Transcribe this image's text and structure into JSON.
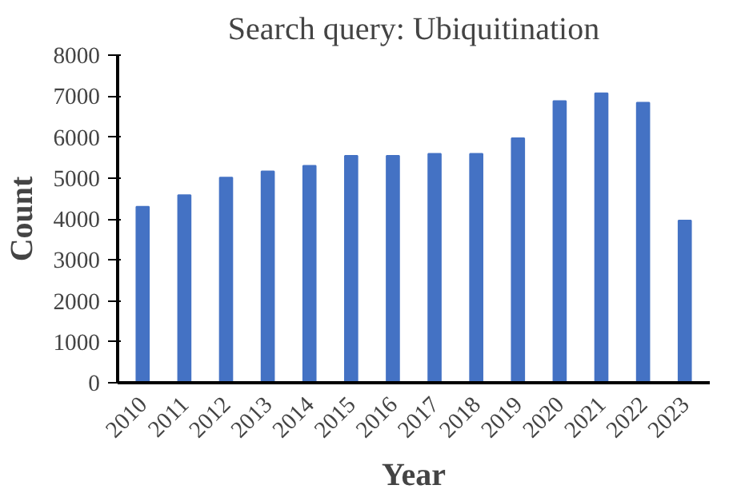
{
  "chart_data": {
    "type": "bar",
    "title": "Search query: Ubiquitination",
    "xlabel": "Year",
    "ylabel": "Count",
    "categories": [
      "2010",
      "2011",
      "2012",
      "2013",
      "2014",
      "2015",
      "2016",
      "2017",
      "2018",
      "2019",
      "2020",
      "2021",
      "2022",
      "2023"
    ],
    "values": [
      4300,
      4580,
      5010,
      5160,
      5300,
      5540,
      5540,
      5590,
      5590,
      5970,
      6880,
      7070,
      6840,
      3960
    ],
    "color": "#4472c4",
    "ylim": [
      0,
      8000
    ],
    "yticks": [
      0,
      1000,
      2000,
      3000,
      4000,
      5000,
      6000,
      7000,
      8000
    ],
    "grid": false
  }
}
